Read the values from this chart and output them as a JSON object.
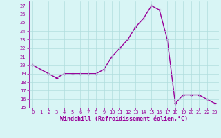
{
  "x": [
    0,
    1,
    2,
    3,
    4,
    5,
    6,
    7,
    8,
    9,
    10,
    11,
    12,
    13,
    14,
    15,
    16,
    17,
    18,
    19,
    20,
    21,
    22,
    23
  ],
  "y": [
    20,
    19.5,
    19,
    18.5,
    19,
    19,
    19,
    19,
    19,
    19.5,
    21,
    22,
    23,
    24.5,
    25.5,
    27,
    26.5,
    23,
    15.5,
    16.5,
    16.5,
    16.5,
    16,
    15.5
  ],
  "line_color": "#990099",
  "marker": "+",
  "bg_color": "#d8f5f5",
  "grid_color": "#b0dede",
  "xlabel": "Windchill (Refroidissement éolien,°C)",
  "xlabel_color": "#990099",
  "tick_color": "#990099",
  "spine_color": "#990099",
  "ylim": [
    15,
    27.5
  ],
  "xlim": [
    -0.5,
    23.5
  ],
  "yticks": [
    15,
    16,
    17,
    18,
    19,
    20,
    21,
    22,
    23,
    24,
    25,
    26,
    27
  ],
  "xticks": [
    0,
    1,
    2,
    3,
    4,
    5,
    6,
    7,
    8,
    9,
    10,
    11,
    12,
    13,
    14,
    15,
    16,
    17,
    18,
    19,
    20,
    21,
    22,
    23
  ],
  "linewidth": 1.0,
  "markersize": 3.5,
  "markeredgewidth": 0.8,
  "tick_fontsize": 5.0,
  "xlabel_fontsize": 6.0
}
